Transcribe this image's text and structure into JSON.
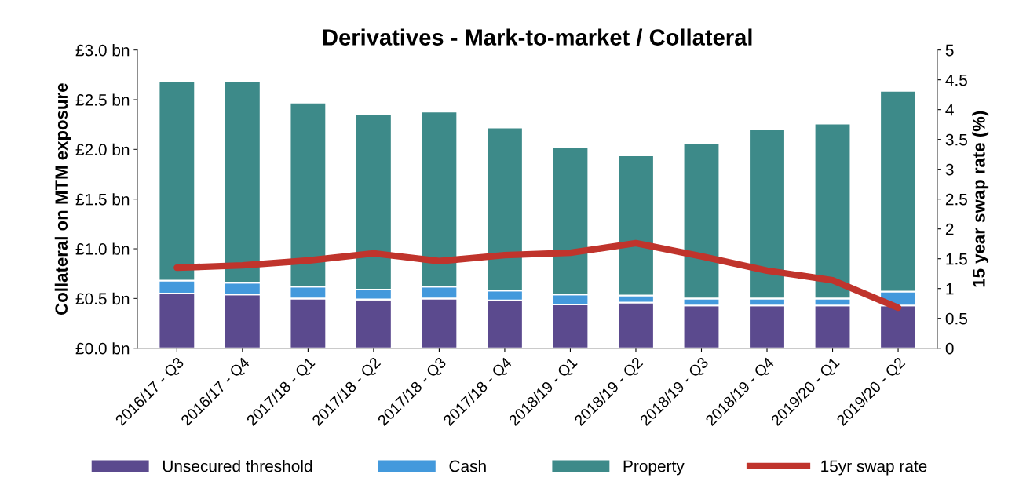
{
  "chart_data": {
    "type": "bar",
    "title": "Derivatives - Mark-to-market / Collateral",
    "ylabel": "Collateral on MTM exposure",
    "y2label": "15 year swap rate (%)",
    "categories": [
      "2016/17 - Q3",
      "2016/17 - Q4",
      "2017/18 - Q1",
      "2017/18 - Q2",
      "2017/18 - Q3",
      "2017/18 - Q4",
      "2018/19 - Q1",
      "2018/19 - Q2",
      "2018/19 - Q3",
      "2018/19 - Q4",
      "2019/20 - Q1",
      "2019/20 - Q2"
    ],
    "stacked": true,
    "series": [
      {
        "name": "Unsecured threshold",
        "color": "#5b4a8e",
        "values": [
          0.55,
          0.54,
          0.5,
          0.49,
          0.5,
          0.48,
          0.44,
          0.46,
          0.43,
          0.43,
          0.43,
          0.43
        ]
      },
      {
        "name": "Cash",
        "color": "#4399dc",
        "values": [
          0.13,
          0.12,
          0.12,
          0.1,
          0.12,
          0.1,
          0.1,
          0.07,
          0.07,
          0.07,
          0.07,
          0.14
        ]
      },
      {
        "name": "Property",
        "color": "#3d8a89",
        "values": [
          2.01,
          2.03,
          1.85,
          1.76,
          1.76,
          1.64,
          1.48,
          1.41,
          1.56,
          1.7,
          1.76,
          2.02
        ]
      },
      {
        "name": "15yr swap rate",
        "color": "#c0342c",
        "type": "line",
        "axis": "y2",
        "values": [
          1.35,
          1.39,
          1.47,
          1.59,
          1.46,
          1.56,
          1.6,
          1.76,
          1.54,
          1.3,
          1.14,
          0.68
        ]
      }
    ],
    "ylim": [
      0,
      3.0
    ],
    "yticks": [
      {
        "value": 0,
        "label": "£0.0 bn"
      },
      {
        "value": 0.5,
        "label": "£0.5 bn"
      },
      {
        "value": 1.0,
        "label": "£1.0 bn"
      },
      {
        "value": 1.5,
        "label": "£1.5 bn"
      },
      {
        "value": 2.0,
        "label": "£2.0 bn"
      },
      {
        "value": 2.5,
        "label": "£2.5 bn"
      },
      {
        "value": 3.0,
        "label": "£3.0 bn"
      }
    ],
    "y2lim": [
      0,
      5
    ],
    "y2ticks": [
      0,
      0.5,
      1,
      1.5,
      2,
      2.5,
      3,
      3.5,
      4,
      4.5,
      5
    ],
    "legend": "bottom",
    "grid": false
  }
}
